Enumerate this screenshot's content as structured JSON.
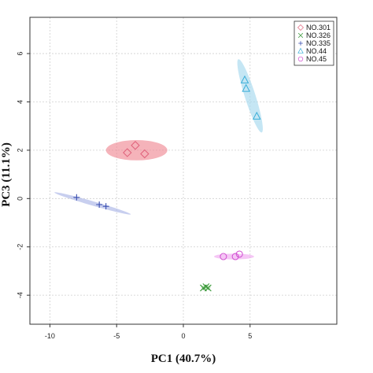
{
  "chart_data": {
    "type": "scatter",
    "title": "",
    "xlabel": "PC1 (40.7%)",
    "ylabel": "PC3 (11.1%)",
    "xlim": [
      -11.5,
      11.5
    ],
    "ylim": [
      -5.2,
      7.5
    ],
    "xticks": [
      -10,
      -5,
      0,
      5
    ],
    "yticks": [
      -4,
      -2,
      0,
      2,
      4,
      6
    ],
    "grid": true,
    "legend_position": "top-right",
    "series": [
      {
        "name": "NO.301",
        "marker": "diamond",
        "color": "#e0607a",
        "ellipse_color": "#f08a95",
        "points": [
          [
            -4.2,
            1.9
          ],
          [
            -3.6,
            2.2
          ],
          [
            -2.9,
            1.85
          ]
        ],
        "ellipse": {
          "cx": -3.5,
          "cy": 2.0,
          "rx": 2.3,
          "ry": 0.42,
          "angle_deg": 0
        }
      },
      {
        "name": "NO.326",
        "marker": "x",
        "color": "#3c9a3c",
        "ellipse_color": "#b8e0b0",
        "points": [
          [
            1.5,
            -3.7
          ],
          [
            1.7,
            -3.65
          ],
          [
            1.85,
            -3.7
          ]
        ],
        "ellipse": {
          "cx": 1.7,
          "cy": -3.68,
          "rx": 0.35,
          "ry": 0.1,
          "angle_deg": 0
        }
      },
      {
        "name": "NO.335",
        "marker": "plus",
        "color": "#3a4fb0",
        "ellipse_color": "#aab6e6",
        "points": [
          [
            -8.0,
            0.05
          ],
          [
            -6.3,
            -0.25
          ],
          [
            -5.8,
            -0.32
          ]
        ],
        "ellipse": {
          "cx": -6.8,
          "cy": -0.2,
          "rx": 2.9,
          "ry": 0.09,
          "angle_deg": -9
        }
      },
      {
        "name": "NO.44",
        "marker": "triangle",
        "color": "#3aaed8",
        "ellipse_color": "#a6d8ee",
        "points": [
          [
            4.6,
            4.9
          ],
          [
            4.7,
            4.55
          ],
          [
            5.5,
            3.4
          ]
        ],
        "ellipse": {
          "cx": 5.0,
          "cy": 4.25,
          "rx": 1.75,
          "ry": 0.32,
          "angle_deg": -60
        }
      },
      {
        "name": "NO.45",
        "marker": "circle",
        "color": "#d04ad0",
        "ellipse_color": "#f0a8f0",
        "points": [
          [
            3.0,
            -2.4
          ],
          [
            3.9,
            -2.4
          ],
          [
            4.2,
            -2.3
          ]
        ],
        "ellipse": {
          "cx": 3.8,
          "cy": -2.4,
          "rx": 1.5,
          "ry": 0.12,
          "angle_deg": 0
        }
      }
    ]
  }
}
